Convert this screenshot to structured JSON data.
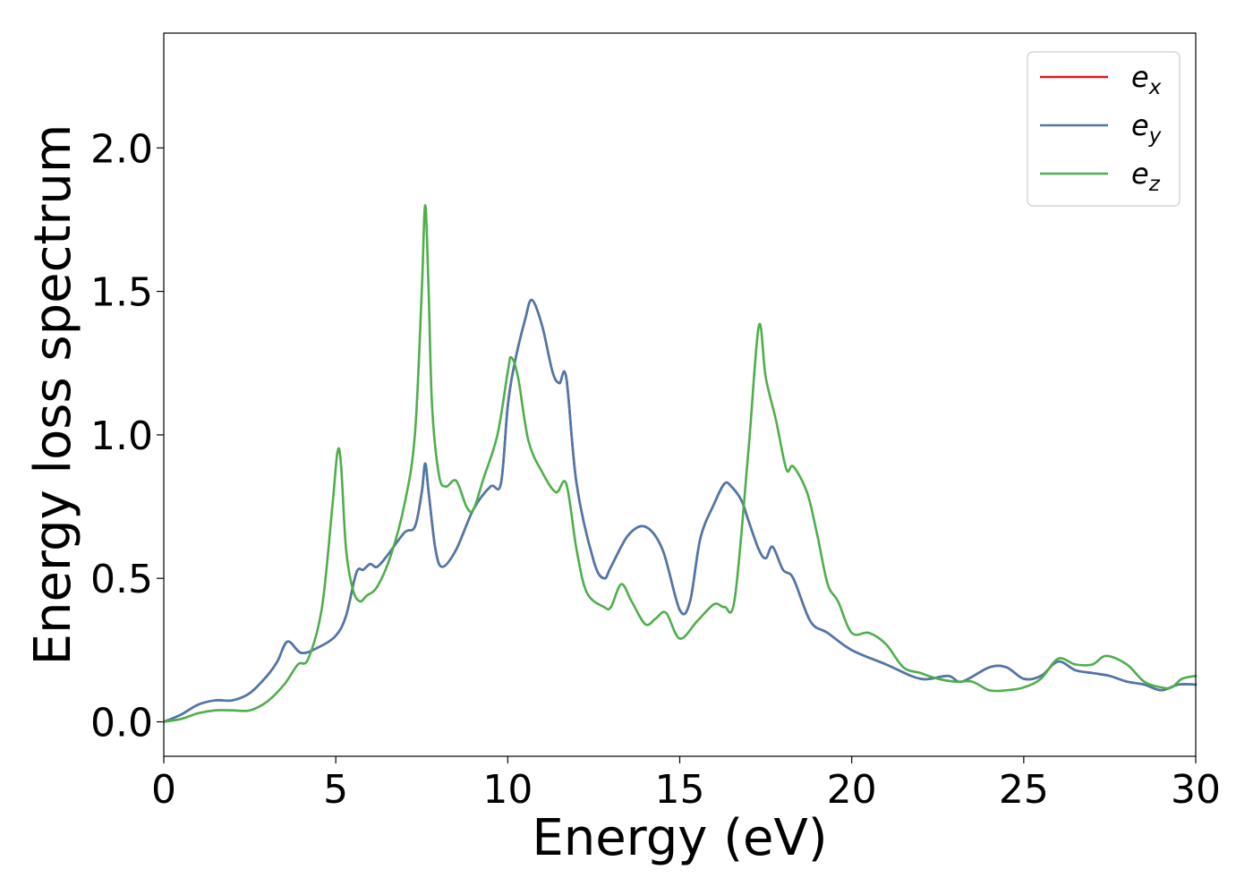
{
  "chart_data": {
    "type": "line",
    "title": "",
    "xlabel": "Energy (eV)",
    "ylabel": "Energy loss spectrum",
    "xlim": [
      0,
      30
    ],
    "ylim": [
      -0.12,
      2.4
    ],
    "xticks": [
      0,
      5,
      10,
      15,
      20,
      25,
      30
    ],
    "xtick_labels": [
      "0",
      "5",
      "10",
      "15",
      "20",
      "25",
      "30"
    ],
    "yticks": [
      0.0,
      0.5,
      1.0,
      1.5,
      2.0
    ],
    "ytick_labels": [
      "0.0",
      "0.5",
      "1.0",
      "1.5",
      "2.0"
    ],
    "grid": false,
    "legend_position": "top-right",
    "series": [
      {
        "name": "ex",
        "base": "e",
        "sub": "x",
        "color": "#e41a1c",
        "x": [
          0,
          0.5,
          1,
          1.5,
          2,
          2.5,
          3,
          3.3,
          3.6,
          4,
          4.5,
          5,
          5.3,
          5.6,
          5.8,
          6,
          6.2,
          6.5,
          7,
          7.3,
          7.5,
          7.6,
          7.7,
          7.9,
          8.1,
          8.5,
          9,
          9.5,
          9.8,
          10,
          10.2,
          10.5,
          10.7,
          11,
          11.3,
          11.5,
          11.7,
          12,
          12.5,
          12.8,
          13,
          13.5,
          14,
          14.5,
          15,
          15.3,
          15.6,
          16,
          16.3,
          16.5,
          16.8,
          17,
          17.3,
          17.5,
          17.7,
          18,
          18.3,
          18.8,
          19.3,
          20,
          21,
          22,
          22.8,
          23.2,
          24,
          24.5,
          25,
          25.5,
          26,
          26.5,
          27,
          27.5,
          28,
          28.5,
          29,
          29.5,
          30
        ],
        "y": [
          0.0,
          0.025,
          0.06,
          0.075,
          0.075,
          0.1,
          0.16,
          0.21,
          0.28,
          0.24,
          0.26,
          0.3,
          0.37,
          0.52,
          0.53,
          0.55,
          0.54,
          0.58,
          0.66,
          0.68,
          0.8,
          0.9,
          0.8,
          0.6,
          0.54,
          0.6,
          0.74,
          0.82,
          0.83,
          1.1,
          1.25,
          1.4,
          1.47,
          1.38,
          1.22,
          1.18,
          1.2,
          0.83,
          0.56,
          0.5,
          0.54,
          0.65,
          0.68,
          0.6,
          0.39,
          0.42,
          0.64,
          0.76,
          0.83,
          0.82,
          0.77,
          0.7,
          0.6,
          0.57,
          0.61,
          0.53,
          0.5,
          0.35,
          0.31,
          0.25,
          0.2,
          0.15,
          0.16,
          0.14,
          0.19,
          0.19,
          0.15,
          0.16,
          0.21,
          0.18,
          0.17,
          0.16,
          0.14,
          0.13,
          0.11,
          0.13,
          0.13
        ]
      },
      {
        "name": "ey",
        "base": "e",
        "sub": "y",
        "color": "#4a79aa",
        "x": [
          0,
          0.5,
          1,
          1.5,
          2,
          2.5,
          3,
          3.3,
          3.6,
          4,
          4.5,
          5,
          5.3,
          5.6,
          5.8,
          6,
          6.2,
          6.5,
          7,
          7.3,
          7.5,
          7.6,
          7.7,
          7.9,
          8.1,
          8.5,
          9,
          9.5,
          9.8,
          10,
          10.2,
          10.5,
          10.7,
          11,
          11.3,
          11.5,
          11.7,
          12,
          12.5,
          12.8,
          13,
          13.5,
          14,
          14.5,
          15,
          15.3,
          15.6,
          16,
          16.3,
          16.5,
          16.8,
          17,
          17.3,
          17.5,
          17.7,
          18,
          18.3,
          18.8,
          19.3,
          20,
          21,
          22,
          22.8,
          23.2,
          24,
          24.5,
          25,
          25.5,
          26,
          26.5,
          27,
          27.5,
          28,
          28.5,
          29,
          29.5,
          30
        ],
        "y": [
          0.0,
          0.025,
          0.06,
          0.075,
          0.075,
          0.1,
          0.16,
          0.21,
          0.28,
          0.24,
          0.26,
          0.3,
          0.37,
          0.52,
          0.53,
          0.55,
          0.54,
          0.58,
          0.66,
          0.68,
          0.8,
          0.9,
          0.8,
          0.6,
          0.54,
          0.6,
          0.74,
          0.82,
          0.83,
          1.1,
          1.25,
          1.4,
          1.47,
          1.38,
          1.22,
          1.18,
          1.2,
          0.83,
          0.56,
          0.5,
          0.54,
          0.65,
          0.68,
          0.6,
          0.39,
          0.42,
          0.64,
          0.76,
          0.83,
          0.82,
          0.77,
          0.7,
          0.6,
          0.57,
          0.61,
          0.53,
          0.5,
          0.35,
          0.31,
          0.25,
          0.2,
          0.15,
          0.16,
          0.14,
          0.19,
          0.19,
          0.15,
          0.16,
          0.21,
          0.18,
          0.17,
          0.16,
          0.14,
          0.13,
          0.11,
          0.13,
          0.13
        ]
      },
      {
        "name": "ez",
        "base": "e",
        "sub": "z",
        "color": "#4daf4a",
        "x": [
          0,
          0.5,
          1,
          1.5,
          2,
          2.5,
          3,
          3.5,
          3.9,
          4.2,
          4.6,
          4.9,
          5.05,
          5.15,
          5.3,
          5.5,
          5.7,
          5.9,
          6.2,
          6.6,
          7,
          7.3,
          7.5,
          7.6,
          7.7,
          7.8,
          8,
          8.2,
          8.5,
          8.8,
          9,
          9.3,
          9.7,
          10,
          10.1,
          10.3,
          10.6,
          11,
          11.4,
          11.7,
          12,
          12.3,
          12.8,
          13,
          13.3,
          13.6,
          14,
          14.3,
          14.6,
          15,
          15.5,
          16,
          16.3,
          16.6,
          17,
          17.3,
          17.5,
          17.8,
          18.1,
          18.3,
          18.7,
          19,
          19.3,
          19.6,
          20,
          20.5,
          21,
          21.5,
          22,
          22.5,
          23,
          23.5,
          24,
          24.5,
          25,
          25.5,
          26,
          26.5,
          27,
          27.4,
          28,
          28.5,
          29,
          29.3,
          29.6,
          30
        ],
        "y": [
          0.0,
          0.01,
          0.03,
          0.04,
          0.04,
          0.04,
          0.07,
          0.13,
          0.2,
          0.22,
          0.4,
          0.75,
          0.94,
          0.9,
          0.6,
          0.46,
          0.42,
          0.44,
          0.47,
          0.58,
          0.76,
          1.0,
          1.5,
          1.8,
          1.5,
          1.1,
          0.86,
          0.82,
          0.84,
          0.75,
          0.74,
          0.85,
          1.0,
          1.22,
          1.27,
          1.2,
          0.98,
          0.87,
          0.8,
          0.83,
          0.6,
          0.45,
          0.4,
          0.4,
          0.48,
          0.42,
          0.34,
          0.36,
          0.38,
          0.29,
          0.35,
          0.41,
          0.4,
          0.43,
          0.95,
          1.38,
          1.2,
          1.05,
          0.88,
          0.89,
          0.8,
          0.65,
          0.48,
          0.42,
          0.31,
          0.31,
          0.27,
          0.19,
          0.17,
          0.15,
          0.14,
          0.14,
          0.11,
          0.11,
          0.12,
          0.15,
          0.22,
          0.2,
          0.2,
          0.23,
          0.2,
          0.14,
          0.12,
          0.12,
          0.15,
          0.16
        ]
      }
    ]
  }
}
